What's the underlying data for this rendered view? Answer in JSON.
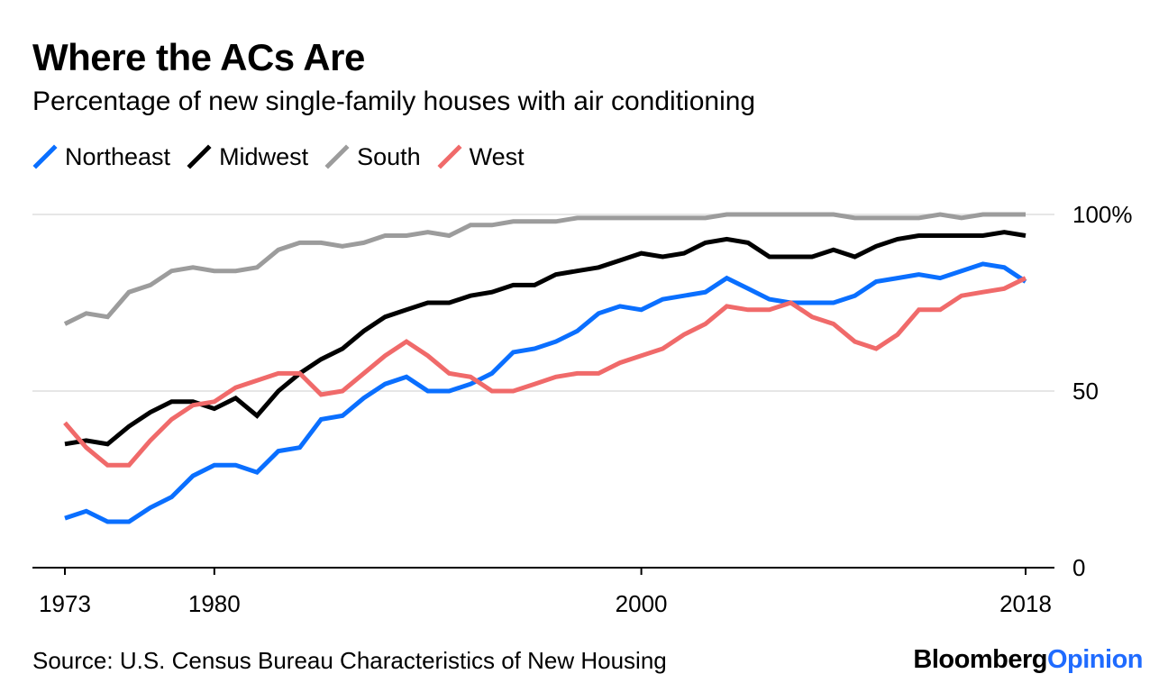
{
  "colors": {
    "northeast": "#0a6fff",
    "midwest": "#000000",
    "south": "#9c9c9c",
    "west": "#f06a6a",
    "grid": "#e6e6e6",
    "brand_accent": "#1f6bff"
  },
  "brand": {
    "part1": "Bloomberg",
    "part2": "Opinion"
  },
  "source": "Source: U.S. Census Bureau Characteristics of New Housing",
  "chart_data": {
    "type": "line",
    "title": "Where the ACs Are",
    "subtitle": "Percentage of new single-family houses with air conditioning",
    "xlabel": "",
    "ylabel": "",
    "xlim": [
      1973,
      2018
    ],
    "ylim": [
      0,
      100
    ],
    "x_ticks": [
      "1973",
      "1980",
      "2000",
      "2018"
    ],
    "y_ticks": [
      "0",
      "50",
      "100%"
    ],
    "legend": [
      "Northeast",
      "Midwest",
      "South",
      "West"
    ],
    "x": [
      1973,
      1974,
      1975,
      1976,
      1977,
      1978,
      1979,
      1980,
      1981,
      1982,
      1983,
      1984,
      1985,
      1986,
      1987,
      1988,
      1989,
      1990,
      1991,
      1992,
      1993,
      1994,
      1995,
      1996,
      1997,
      1998,
      1999,
      2000,
      2001,
      2002,
      2003,
      2004,
      2005,
      2006,
      2007,
      2008,
      2009,
      2010,
      2011,
      2012,
      2013,
      2014,
      2015,
      2016,
      2017,
      2018
    ],
    "series": [
      {
        "name": "Northeast",
        "key": "northeast",
        "values": [
          14,
          16,
          13,
          13,
          17,
          20,
          26,
          29,
          29,
          27,
          33,
          34,
          42,
          43,
          48,
          52,
          54,
          50,
          50,
          52,
          55,
          61,
          62,
          64,
          67,
          72,
          74,
          73,
          76,
          77,
          78,
          82,
          79,
          76,
          75,
          75,
          75,
          77,
          81,
          82,
          83,
          82,
          84,
          86,
          85,
          81
        ]
      },
      {
        "name": "Midwest",
        "key": "midwest",
        "values": [
          35,
          36,
          35,
          40,
          44,
          47,
          47,
          45,
          48,
          43,
          50,
          55,
          59,
          62,
          67,
          71,
          73,
          75,
          75,
          77,
          78,
          80,
          80,
          83,
          84,
          85,
          87,
          89,
          88,
          89,
          92,
          93,
          92,
          88,
          88,
          88,
          90,
          88,
          91,
          93,
          94,
          94,
          94,
          94,
          95,
          94
        ]
      },
      {
        "name": "South",
        "key": "south",
        "values": [
          69,
          72,
          71,
          78,
          80,
          84,
          85,
          84,
          84,
          85,
          90,
          92,
          92,
          91,
          92,
          94,
          94,
          95,
          94,
          97,
          97,
          98,
          98,
          98,
          99,
          99,
          99,
          99,
          99,
          99,
          99,
          100,
          100,
          100,
          100,
          100,
          100,
          99,
          99,
          99,
          99,
          100,
          99,
          100,
          100,
          100
        ]
      },
      {
        "name": "West",
        "key": "west",
        "values": [
          41,
          34,
          29,
          29,
          36,
          42,
          46,
          47,
          51,
          53,
          55,
          55,
          49,
          50,
          55,
          60,
          64,
          60,
          55,
          54,
          50,
          50,
          52,
          54,
          55,
          55,
          58,
          60,
          62,
          66,
          69,
          74,
          73,
          73,
          75,
          71,
          69,
          64,
          62,
          66,
          73,
          73,
          77,
          78,
          79,
          82
        ]
      }
    ]
  }
}
